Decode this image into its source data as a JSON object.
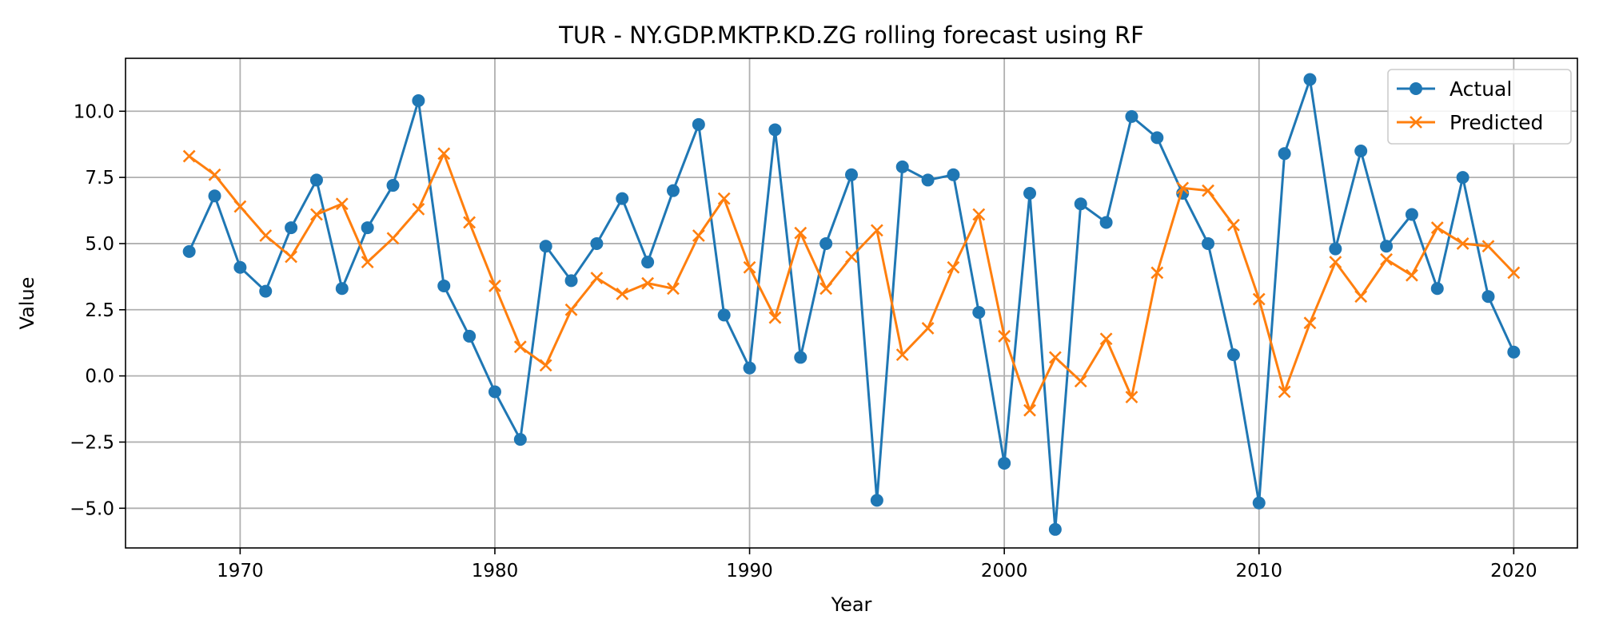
{
  "chart_data": {
    "type": "line",
    "title": "TUR - NY.GDP.MKTP.KD.ZG rolling forecast using RF",
    "xlabel": "Year",
    "ylabel": "Value",
    "xlim": [
      1965.5,
      2022.5
    ],
    "ylim": [
      -6.5,
      12.0
    ],
    "xticks": [
      1970,
      1980,
      1990,
      2000,
      2010,
      2020
    ],
    "xtick_labels": [
      "1970",
      "1980",
      "1990",
      "2000",
      "2010",
      "2020"
    ],
    "yticks": [
      -5.0,
      -2.5,
      0.0,
      2.5,
      5.0,
      7.5,
      10.0
    ],
    "ytick_labels": [
      "−5.0",
      "−2.5",
      "0.0",
      "2.5",
      "5.0",
      "7.5",
      "10.0"
    ],
    "grid": true,
    "legend_position": "upper-right",
    "x": [
      1968,
      1969,
      1970,
      1971,
      1972,
      1973,
      1974,
      1975,
      1976,
      1977,
      1978,
      1979,
      1980,
      1981,
      1982,
      1983,
      1984,
      1985,
      1986,
      1987,
      1988,
      1989,
      1990,
      1991,
      1992,
      1993,
      1994,
      1995,
      1996,
      1997,
      1998,
      1999,
      2000,
      2001,
      2002,
      2003,
      2004,
      2005,
      2006,
      2007,
      2008,
      2009,
      2010,
      2011,
      2012,
      2013,
      2014,
      2015,
      2016,
      2017,
      2018,
      2019,
      2020
    ],
    "series": [
      {
        "name": "Actual",
        "color": "#1f77b4",
        "marker": "circle",
        "values": [
          4.7,
          6.8,
          4.1,
          3.2,
          5.6,
          7.4,
          3.3,
          5.6,
          7.2,
          10.4,
          3.4,
          1.5,
          -0.6,
          -2.4,
          4.9,
          3.6,
          5.0,
          6.7,
          4.3,
          7.0,
          9.5,
          2.3,
          0.3,
          9.3,
          0.7,
          5.0,
          7.6,
          -4.7,
          7.9,
          7.4,
          7.6,
          2.4,
          -3.3,
          6.9,
          -5.8,
          6.5,
          5.8,
          9.8,
          9.0,
          6.9,
          5.0,
          0.8,
          -4.8,
          8.4,
          11.2,
          4.8,
          8.5,
          4.9,
          6.1,
          3.3,
          7.5,
          3.0,
          0.9
        ]
      },
      {
        "name": "Predicted",
        "color": "#ff7f0e",
        "marker": "x",
        "values": [
          8.3,
          7.6,
          6.4,
          5.3,
          4.5,
          6.1,
          6.5,
          4.3,
          5.2,
          6.3,
          8.4,
          5.8,
          3.4,
          1.1,
          0.4,
          2.5,
          3.7,
          3.1,
          3.5,
          3.3,
          5.3,
          6.7,
          4.1,
          2.2,
          5.4,
          3.3,
          4.5,
          5.5,
          0.8,
          1.8,
          4.1,
          6.1,
          1.5,
          -1.3,
          0.7,
          -0.2,
          1.4,
          -0.8,
          3.9,
          7.1,
          7.0,
          5.7,
          2.9,
          -0.6,
          2.0,
          4.3,
          3.0,
          4.4,
          3.8,
          5.6,
          5.0,
          4.9,
          3.9
        ]
      }
    ]
  }
}
